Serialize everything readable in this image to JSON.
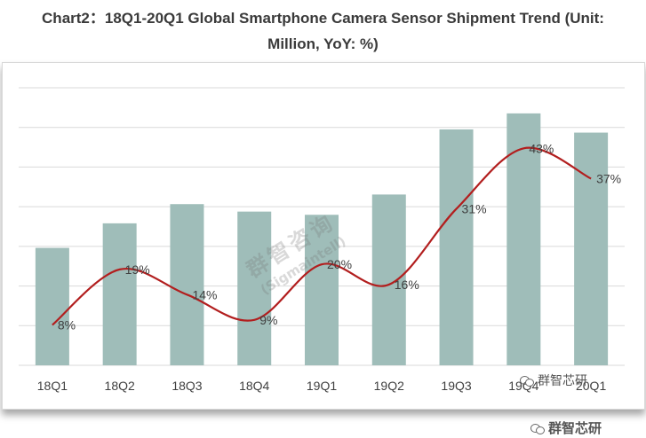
{
  "title_line1": "Chart2：18Q1-20Q1 Global Smartphone Camera Sensor Shipment Trend (Unit:",
  "title_line2": "Million, YoY: %)",
  "watermark": {
    "diagonal_cn": "群智咨询",
    "diagonal_en": "(Sigmaintell)",
    "corner_text_1": "群智芯研",
    "corner_text_2": "群智芯研"
  },
  "colors": {
    "bar": "#9fbdb9",
    "line": "#b21e1e",
    "grid": "#d9d9d9",
    "text": "#404040"
  },
  "chart_data": {
    "type": "bar",
    "categories": [
      "18Q1",
      "18Q2",
      "18Q3",
      "18Q4",
      "19Q1",
      "19Q2",
      "19Q3",
      "19Q4",
      "20Q1"
    ],
    "series": [
      {
        "values": [
          1100,
          1330,
          1510,
          1440,
          1410,
          1600,
          2210,
          2360,
          2180
        ]
      },
      {
        "values": [
          8,
          19,
          14,
          9,
          20,
          16,
          31,
          43,
          37
        ],
        "labels": [
          "8%",
          "19%",
          "14%",
          "9%",
          "20%",
          "16%",
          "31%",
          "43%",
          "37%"
        ]
      }
    ],
    "grid": true,
    "legend": "none"
  }
}
